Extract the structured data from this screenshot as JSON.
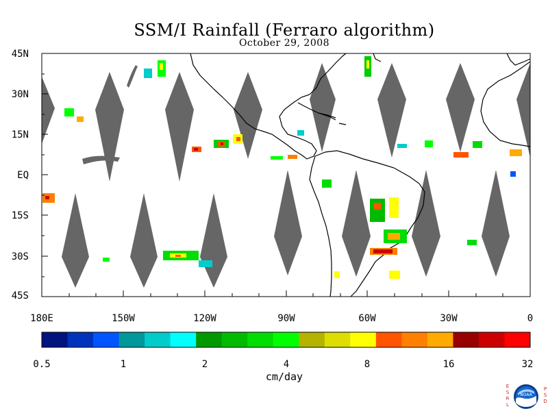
{
  "title": "SSM/I Rainfall (Ferraro algorithm)",
  "date": "October 29, 2008",
  "lat_labels": [
    "45N",
    "30N",
    "15N",
    "EQ",
    "15S",
    "30S",
    "45S"
  ],
  "lon_labels": [
    "180E",
    "150W",
    "120W",
    "90W",
    "60W",
    "30W",
    "0"
  ],
  "colorbar": {
    "colors": [
      "#00137f",
      "#0033bb",
      "#0055ff",
      "#00989a",
      "#00cccc",
      "#00ffff",
      "#009900",
      "#00bb00",
      "#00dd00",
      "#00ff00",
      "#b3b300",
      "#dddd00",
      "#ffff00",
      "#ff5500",
      "#ff7f00",
      "#ffaa00",
      "#990000",
      "#cc0000",
      "#ff0000"
    ],
    "tick_labels": [
      "0.5",
      "1",
      "2",
      "4",
      "8",
      "16",
      "32"
    ]
  },
  "units": "cm/day",
  "logo": {
    "left_text": "ESRL",
    "right_text": "PSD",
    "center_text": "NOAA"
  },
  "colors": {
    "swath_gap": "#666666",
    "land_outline": "#000000"
  }
}
